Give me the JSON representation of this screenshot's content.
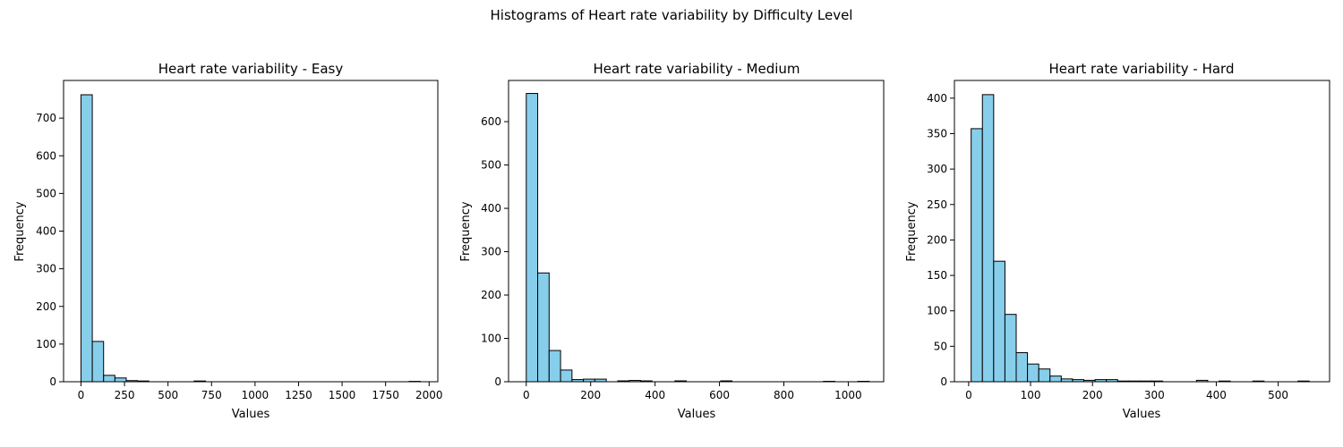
{
  "figure_title": "Histograms of Heart rate variability by Difficulty Level",
  "colors": {
    "bar_fill": "#87ceeb",
    "bar_edge": "#000000"
  },
  "chart_data": [
    {
      "type": "bar",
      "title": "Heart rate variability - Easy",
      "xlabel": "Values",
      "ylabel": "Frequency",
      "bins": 30,
      "bin_start": 0,
      "bin_width": 65,
      "xlim": [
        -100,
        2050
      ],
      "ylim": [
        0,
        800
      ],
      "xticks": [
        "0",
        "250",
        "500",
        "750",
        "1000",
        "1250",
        "1500",
        "1750",
        "2000"
      ],
      "xtick_values": [
        0,
        250,
        500,
        750,
        1000,
        1250,
        1500,
        1750,
        2000
      ],
      "yticks": [
        "0",
        "100",
        "200",
        "300",
        "400",
        "500",
        "600",
        "700"
      ],
      "ytick_values": [
        0,
        100,
        200,
        300,
        400,
        500,
        600,
        700
      ],
      "values": [
        762,
        107,
        17,
        10,
        3,
        2,
        0,
        0,
        0,
        0,
        2,
        0,
        0,
        0,
        0,
        0,
        0,
        0,
        0,
        0,
        0,
        0,
        0,
        0,
        0,
        0,
        0,
        0,
        0,
        1
      ]
    },
    {
      "type": "bar",
      "title": "Heart rate variability - Medium",
      "xlabel": "Values",
      "ylabel": "Frequency",
      "bins": 30,
      "bin_start": 0,
      "bin_width": 35.5,
      "xlim": [
        -55,
        1110
      ],
      "ylim": [
        0,
        695
      ],
      "xticks": [
        "0",
        "200",
        "400",
        "600",
        "800",
        "1000"
      ],
      "xtick_values": [
        0,
        200,
        400,
        600,
        800,
        1000
      ],
      "yticks": [
        "0",
        "100",
        "200",
        "300",
        "400",
        "500",
        "600"
      ],
      "ytick_values": [
        0,
        100,
        200,
        300,
        400,
        500,
        600
      ],
      "values": [
        665,
        251,
        72,
        27,
        5,
        6,
        6,
        0,
        2,
        3,
        2,
        0,
        0,
        2,
        0,
        0,
        0,
        2,
        0,
        0,
        0,
        0,
        0,
        0,
        0,
        0,
        1,
        0,
        0,
        1
      ]
    },
    {
      "type": "bar",
      "title": "Heart rate variability - Hard",
      "xlabel": "Values",
      "ylabel": "Frequency",
      "bins": 30,
      "bin_start": 4,
      "bin_width": 18.2,
      "xlim": [
        -23,
        583
      ],
      "ylim": [
        0,
        425
      ],
      "xticks": [
        "0",
        "100",
        "200",
        "300",
        "400",
        "500"
      ],
      "xtick_values": [
        0,
        100,
        200,
        300,
        400,
        500
      ],
      "yticks": [
        "0",
        "50",
        "100",
        "150",
        "200",
        "250",
        "300",
        "350",
        "400"
      ],
      "ytick_values": [
        0,
        50,
        100,
        150,
        200,
        250,
        300,
        350,
        400
      ],
      "values": [
        357,
        405,
        170,
        95,
        41,
        25,
        18,
        8,
        4,
        3,
        2,
        3,
        3,
        1,
        1,
        1,
        1,
        0,
        0,
        0,
        2,
        0,
        1,
        0,
        0,
        1,
        0,
        0,
        0,
        1
      ]
    }
  ]
}
